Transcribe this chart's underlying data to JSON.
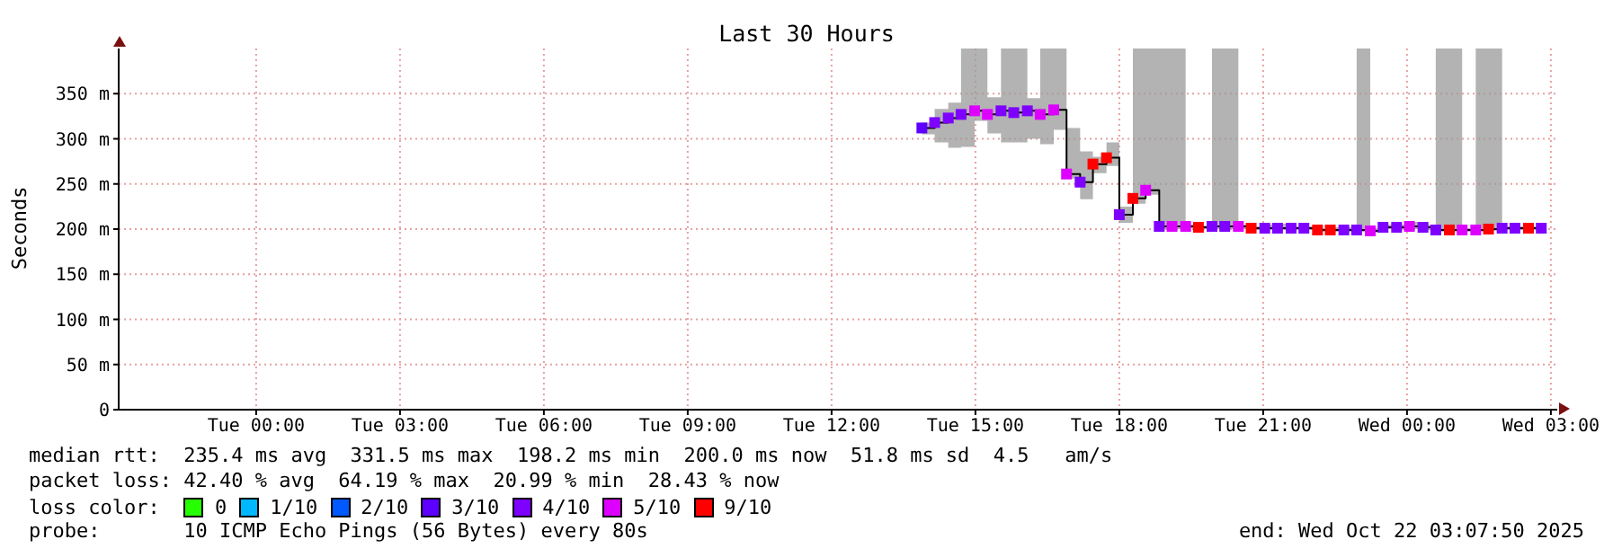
{
  "chart_data": {
    "type": "step",
    "title": "Last 30 Hours",
    "ylabel": "Seconds",
    "xlim": [
      "2025-10-20T21:08",
      "2025-10-22T03:08"
    ],
    "xticks": [
      {
        "value": "2025-10-21T00:00",
        "label": "Tue 00:00"
      },
      {
        "value": "2025-10-21T03:00",
        "label": "Tue 03:00"
      },
      {
        "value": "2025-10-21T06:00",
        "label": "Tue 06:00"
      },
      {
        "value": "2025-10-21T09:00",
        "label": "Tue 09:00"
      },
      {
        "value": "2025-10-21T12:00",
        "label": "Tue 12:00"
      },
      {
        "value": "2025-10-21T15:00",
        "label": "Tue 15:00"
      },
      {
        "value": "2025-10-21T18:00",
        "label": "Tue 18:00"
      },
      {
        "value": "2025-10-21T21:00",
        "label": "Tue 21:00"
      },
      {
        "value": "2025-10-22T00:00",
        "label": "Wed 00:00"
      },
      {
        "value": "2025-10-22T03:00",
        "label": "Wed 03:00"
      }
    ],
    "ylim": [
      0,
      400
    ],
    "yticks": [
      0,
      {
        "value": 50,
        "label": "50 m"
      },
      {
        "value": 100,
        "label": "100 m"
      },
      {
        "value": 150,
        "label": "150 m"
      },
      {
        "value": 200,
        "label": "200 m"
      },
      {
        "value": 250,
        "label": "250 m"
      },
      {
        "value": 300,
        "label": "300 m"
      },
      {
        "value": 350,
        "label": "350 m"
      }
    ],
    "grid": true,
    "legend": "bottom",
    "legend_title": "loss color:",
    "marker": "square",
    "series": [
      {
        "color": "#000000",
        "marker": "none",
        "x": [
          "2025-10-21T13:53",
          "2025-10-21T14:09",
          "2025-10-21T14:26",
          "2025-10-21T14:42",
          "2025-10-21T14:59",
          "2025-10-21T15:15",
          "2025-10-21T15:32",
          "2025-10-21T15:48",
          "2025-10-21T16:05",
          "2025-10-21T16:21",
          "2025-10-21T16:38",
          "2025-10-21T16:54",
          "2025-10-21T17:11",
          "2025-10-21T17:27",
          "2025-10-21T17:44",
          "2025-10-21T18:00",
          "2025-10-21T18:17",
          "2025-10-21T18:33",
          "2025-10-21T18:50",
          "2025-10-21T19:06",
          "2025-10-21T19:23",
          "2025-10-21T19:39",
          "2025-10-21T19:56",
          "2025-10-21T20:12",
          "2025-10-21T20:29",
          "2025-10-21T20:45",
          "2025-10-21T21:02",
          "2025-10-21T21:18",
          "2025-10-21T21:35",
          "2025-10-21T21:51",
          "2025-10-21T22:08",
          "2025-10-21T22:24",
          "2025-10-21T22:41",
          "2025-10-21T22:57",
          "2025-10-21T23:14",
          "2025-10-21T23:30",
          "2025-10-21T23:47",
          "2025-10-22T00:03",
          "2025-10-22T00:20",
          "2025-10-22T00:36",
          "2025-10-22T00:53",
          "2025-10-22T01:09",
          "2025-10-22T01:26",
          "2025-10-22T01:42",
          "2025-10-22T01:59",
          "2025-10-22T02:15",
          "2025-10-22T02:32",
          "2025-10-22T02:48"
        ],
        "values": [
          312,
          318,
          323,
          327,
          331,
          327,
          331,
          329,
          331,
          327,
          332,
          261,
          252,
          272,
          279,
          216,
          234,
          243,
          203,
          203,
          203,
          202,
          203,
          203,
          203,
          201,
          201,
          201,
          201,
          201,
          199,
          199,
          199,
          199,
          198,
          202,
          202,
          203,
          202,
          199,
          199,
          199,
          199,
          200,
          201,
          201,
          201,
          201
        ],
        "lower": [
          305,
          296,
          290,
          291,
          320,
          306,
          296,
          296,
          300,
          294,
          310,
          256,
          233,
          262,
          270,
          207,
          228,
          238,
          200,
          200,
          201,
          200,
          200,
          200,
          200,
          199,
          199,
          199,
          199,
          199,
          197,
          197,
          197,
          197,
          196,
          200,
          200,
          200,
          199,
          197,
          197,
          197,
          197,
          198,
          199,
          199,
          199,
          199
        ],
        "upper": [
          318,
          333,
          340,
          400,
          400,
          346,
          400,
          400,
          345,
          400,
          400,
          312,
          286,
          280,
          296,
          225,
          400,
          400,
          400,
          400,
          205,
          204,
          400,
          400,
          205,
          203,
          205,
          206,
          203,
          203,
          201,
          202,
          202,
          400,
          200,
          205,
          205,
          208,
          205,
          400,
          400,
          201,
          400,
          400,
          203,
          203,
          203,
          400
        ]
      },
      {
        "type": "scatter",
        "name": "0",
        "color": "#26ff00"
      },
      {
        "type": "scatter",
        "name": "1/10",
        "color": "#00b8ff"
      },
      {
        "type": "scatter",
        "name": "2/10",
        "color": "#0059ff"
      },
      {
        "type": "scatter",
        "name": "3/10",
        "color": "#5e00ff",
        "x": [
          "2025-10-21T13:53"
        ],
        "values": [
          312
        ]
      },
      {
        "type": "scatter",
        "name": "4/10",
        "color": "#7e00ff",
        "x": [
          "2025-10-21T14:09",
          "2025-10-21T14:26",
          "2025-10-21T14:42",
          "2025-10-21T15:32",
          "2025-10-21T15:48",
          "2025-10-21T16:05",
          "2025-10-21T17:11",
          "2025-10-21T18:00",
          "2025-10-21T18:50",
          "2025-10-21T19:56",
          "2025-10-21T20:12",
          "2025-10-21T21:02",
          "2025-10-21T21:18",
          "2025-10-21T21:35",
          "2025-10-21T21:51",
          "2025-10-21T22:41",
          "2025-10-21T22:57",
          "2025-10-21T23:30",
          "2025-10-21T23:47",
          "2025-10-22T00:20",
          "2025-10-22T00:36",
          "2025-10-22T01:59",
          "2025-10-22T02:15",
          "2025-10-22T02:48"
        ],
        "values": [
          318,
          323,
          327,
          331,
          329,
          331,
          252,
          216,
          203,
          203,
          203,
          201,
          201,
          201,
          201,
          199,
          199,
          202,
          202,
          202,
          199,
          201,
          201,
          201
        ]
      },
      {
        "type": "scatter",
        "name": "5/10",
        "color": "#dd00ff",
        "x": [
          "2025-10-21T14:59",
          "2025-10-21T15:15",
          "2025-10-21T16:21",
          "2025-10-21T16:38",
          "2025-10-21T16:54",
          "2025-10-21T18:33",
          "2025-10-21T19:06",
          "2025-10-21T19:23",
          "2025-10-21T20:29",
          "2025-10-21T23:14",
          "2025-10-22T00:03",
          "2025-10-22T01:09",
          "2025-10-22T01:26"
        ],
        "values": [
          331,
          327,
          327,
          332,
          261,
          243,
          203,
          203,
          203,
          198,
          203,
          199,
          199
        ]
      },
      {
        "type": "scatter",
        "name": "9/10",
        "color": "#ff0000",
        "x": [
          "2025-10-21T17:27",
          "2025-10-21T17:44",
          "2025-10-21T18:17",
          "2025-10-21T19:39",
          "2025-10-21T20:45",
          "2025-10-21T22:08",
          "2025-10-21T22:24",
          "2025-10-22T00:53",
          "2025-10-22T01:42",
          "2025-10-22T02:32"
        ],
        "values": [
          272,
          279,
          234,
          202,
          201,
          199,
          199,
          199,
          200,
          201
        ]
      }
    ],
    "annotations": [
      "median rtt:  235.4 ms avg  331.5 ms max  198.2 ms min  200.0 ms now  51.8 ms sd  4.5   am/s",
      "packet loss: 42.40 % avg  64.19 % max  20.99 % min  28.43 % now",
      "probe:       10 ICMP Echo Pings (56 Bytes) every 80s",
      "end: Wed Oct 22 03:07:50 2025"
    ]
  }
}
